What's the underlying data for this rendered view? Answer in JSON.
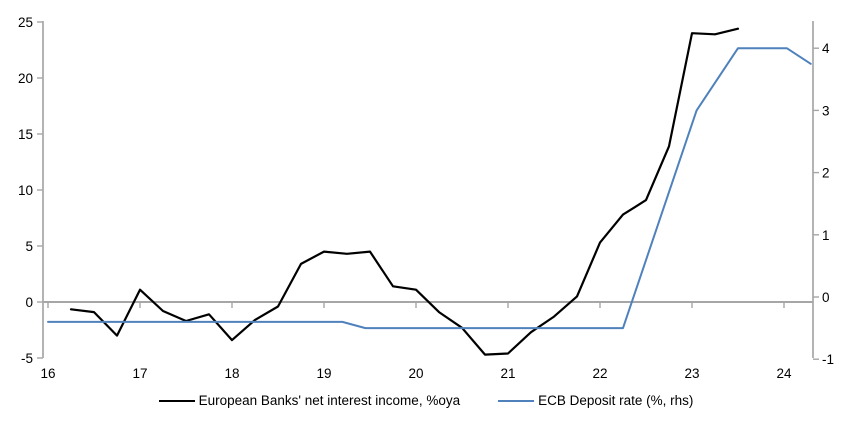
{
  "chart_data": {
    "type": "line",
    "title": "",
    "grid": false,
    "zero_line": true,
    "legend_position": "bottom",
    "colors": {
      "axis": "#a6a6a6",
      "text": "#000000",
      "nii_line": "#000000",
      "ecb_line": "#4f81bd"
    },
    "x_axis": {
      "ticks": [
        16,
        17,
        18,
        19,
        20,
        21,
        22,
        23,
        24
      ],
      "tick_labels": [
        "16",
        "17",
        "18",
        "19",
        "20",
        "21",
        "22",
        "23",
        "24"
      ],
      "range": [
        15.95,
        24.32
      ]
    },
    "y_axis_left": {
      "ticks": [
        25,
        20,
        15,
        10,
        5,
        0,
        -5
      ],
      "tick_labels": [
        "25",
        "20",
        "15",
        "10",
        "5",
        "0",
        "-5"
      ],
      "range": [
        -5,
        25
      ]
    },
    "y_axis_right": {
      "ticks": [
        4,
        3,
        2,
        1,
        0,
        -1
      ],
      "tick_labels": [
        "4",
        "3",
        "2",
        "1",
        "0",
        "-1"
      ],
      "range": [
        -1,
        4.5
      ]
    },
    "series": [
      {
        "id": "nii-line",
        "name": "European Banks' net interest income, %oya",
        "axis": "left",
        "color": "#000000",
        "width": 2.2,
        "x": [
          16.25,
          16.5,
          16.75,
          17.0,
          17.25,
          17.5,
          17.75,
          18.0,
          18.25,
          18.5,
          18.75,
          19.0,
          19.25,
          19.5,
          19.75,
          20.0,
          20.25,
          20.5,
          20.75,
          21.0,
          21.25,
          21.5,
          21.75,
          22.0,
          22.25,
          22.5,
          22.75,
          23.0,
          23.25,
          23.5
        ],
        "values": [
          -0.65,
          -0.9,
          -3.0,
          1.1,
          -0.8,
          -1.7,
          -1.1,
          -3.4,
          -1.6,
          -0.4,
          3.4,
          4.5,
          4.3,
          4.5,
          1.4,
          1.1,
          -0.9,
          -2.3,
          -4.7,
          -4.6,
          -2.7,
          -1.3,
          0.5,
          5.3,
          7.8,
          9.1,
          13.9,
          24.0,
          23.9,
          24.4
        ]
      },
      {
        "id": "ecb-deposit-rate-line",
        "name": "ECB Deposit rate (%, rhs)",
        "axis": "right",
        "color": "#4f81bd",
        "width": 2,
        "x": [
          16.0,
          19.2,
          19.45,
          22.25,
          23.05,
          23.5,
          24.03,
          24.29
        ],
        "values": [
          -0.4,
          -0.4,
          -0.5,
          -0.5,
          3.0,
          4.0,
          4.0,
          3.75
        ]
      }
    ]
  }
}
